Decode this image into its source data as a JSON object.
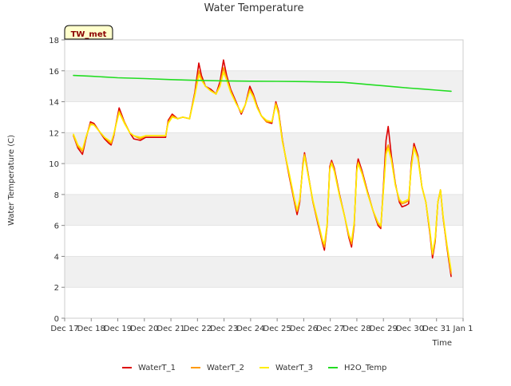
{
  "chart_data": {
    "type": "line",
    "title": "Water Temperature",
    "xlabel": "Time",
    "ylabel": "Water Temperature (C)",
    "badge": "TW_met",
    "xlim": [
      0,
      15
    ],
    "ylim": [
      0,
      18
    ],
    "x_ticks": [
      0,
      1,
      2,
      3,
      4,
      5,
      6,
      7,
      8,
      9,
      10,
      11,
      12,
      13,
      14,
      15
    ],
    "x_tick_labels": [
      "Dec 17",
      "Dec 18",
      "Dec 19",
      "Dec 20",
      "Dec 21",
      "Dec 22",
      "Dec 23",
      "Dec 24",
      "Dec 25",
      "Dec 26",
      "Dec 27",
      "Dec 28",
      "Dec 29",
      "Dec 30",
      "Dec 31",
      "Jan 1"
    ],
    "y_ticks": [
      0,
      2,
      4,
      6,
      8,
      10,
      12,
      14,
      16,
      18
    ],
    "y_tick_labels": [
      "0",
      "2",
      "4",
      "6",
      "8",
      "10",
      "12",
      "14",
      "16",
      "18"
    ],
    "grid": "horizontal bands",
    "legend_position": "bottom",
    "colors": {
      "WaterT_1": "#dd0000",
      "WaterT_2": "#ff9900",
      "WaterT_3": "#ffee00",
      "H2O_Temp": "#22dd22",
      "band": "#f0f0f0",
      "badge_bg": "#ffffcc",
      "badge_border": "#000000"
    },
    "series": [
      {
        "name": "WaterT_1",
        "points": [
          [
            0.33,
            11.8
          ],
          [
            0.5,
            11.0
          ],
          [
            0.67,
            10.6
          ],
          [
            0.8,
            11.6
          ],
          [
            0.97,
            12.7
          ],
          [
            1.1,
            12.6
          ],
          [
            1.3,
            12.1
          ],
          [
            1.5,
            11.6
          ],
          [
            1.67,
            11.3
          ],
          [
            1.75,
            11.2
          ],
          [
            1.85,
            11.8
          ],
          [
            2.05,
            13.6
          ],
          [
            2.25,
            12.7
          ],
          [
            2.45,
            12.0
          ],
          [
            2.6,
            11.6
          ],
          [
            2.85,
            11.5
          ],
          [
            3.05,
            11.7
          ],
          [
            3.25,
            11.7
          ],
          [
            3.6,
            11.7
          ],
          [
            3.8,
            11.7
          ],
          [
            3.9,
            12.8
          ],
          [
            4.05,
            13.2
          ],
          [
            4.25,
            12.9
          ],
          [
            4.45,
            13.0
          ],
          [
            4.7,
            12.9
          ],
          [
            4.9,
            14.6
          ],
          [
            5.05,
            16.5
          ],
          [
            5.15,
            15.7
          ],
          [
            5.3,
            15.0
          ],
          [
            5.5,
            14.8
          ],
          [
            5.7,
            14.5
          ],
          [
            5.85,
            15.3
          ],
          [
            5.98,
            16.7
          ],
          [
            6.1,
            15.7
          ],
          [
            6.25,
            14.8
          ],
          [
            6.45,
            14.0
          ],
          [
            6.65,
            13.2
          ],
          [
            6.8,
            13.8
          ],
          [
            6.97,
            15.0
          ],
          [
            7.1,
            14.5
          ],
          [
            7.25,
            13.7
          ],
          [
            7.4,
            13.1
          ],
          [
            7.6,
            12.7
          ],
          [
            7.8,
            12.6
          ],
          [
            7.95,
            14.0
          ],
          [
            8.05,
            13.4
          ],
          [
            8.2,
            11.5
          ],
          [
            8.45,
            9.2
          ],
          [
            8.65,
            7.5
          ],
          [
            8.75,
            6.7
          ],
          [
            8.85,
            7.5
          ],
          [
            8.97,
            10.0
          ],
          [
            9.03,
            10.7
          ],
          [
            9.15,
            9.5
          ],
          [
            9.35,
            7.5
          ],
          [
            9.55,
            6.0
          ],
          [
            9.7,
            4.9
          ],
          [
            9.78,
            4.4
          ],
          [
            9.88,
            6.0
          ],
          [
            9.98,
            9.8
          ],
          [
            10.05,
            10.2
          ],
          [
            10.15,
            9.7
          ],
          [
            10.35,
            8.0
          ],
          [
            10.55,
            6.5
          ],
          [
            10.7,
            5.2
          ],
          [
            10.8,
            4.6
          ],
          [
            10.9,
            6.0
          ],
          [
            11.0,
            9.8
          ],
          [
            11.05,
            10.3
          ],
          [
            11.2,
            9.5
          ],
          [
            11.4,
            8.2
          ],
          [
            11.6,
            7.0
          ],
          [
            11.8,
            6.0
          ],
          [
            11.9,
            5.8
          ],
          [
            12.0,
            8.5
          ],
          [
            12.1,
            11.5
          ],
          [
            12.18,
            12.4
          ],
          [
            12.3,
            10.5
          ],
          [
            12.45,
            8.7
          ],
          [
            12.6,
            7.5
          ],
          [
            12.7,
            7.2
          ],
          [
            12.85,
            7.3
          ],
          [
            12.95,
            7.4
          ],
          [
            13.05,
            10.0
          ],
          [
            13.15,
            11.3
          ],
          [
            13.3,
            10.5
          ],
          [
            13.45,
            8.5
          ],
          [
            13.6,
            7.5
          ],
          [
            13.75,
            5.5
          ],
          [
            13.85,
            3.9
          ],
          [
            13.95,
            5.0
          ],
          [
            14.05,
            7.5
          ],
          [
            14.15,
            8.3
          ],
          [
            14.25,
            6.5
          ],
          [
            14.4,
            4.5
          ],
          [
            14.55,
            2.7
          ]
        ]
      },
      {
        "name": "WaterT_2",
        "points": [
          [
            0.33,
            11.8
          ],
          [
            0.5,
            11.1
          ],
          [
            0.67,
            10.8
          ],
          [
            0.8,
            11.7
          ],
          [
            0.97,
            12.6
          ],
          [
            1.1,
            12.5
          ],
          [
            1.3,
            12.1
          ],
          [
            1.5,
            11.7
          ],
          [
            1.67,
            11.4
          ],
          [
            1.75,
            11.3
          ],
          [
            1.85,
            11.9
          ],
          [
            2.05,
            13.4
          ],
          [
            2.25,
            12.7
          ],
          [
            2.45,
            12.0
          ],
          [
            2.6,
            11.8
          ],
          [
            2.85,
            11.6
          ],
          [
            3.05,
            11.8
          ],
          [
            3.25,
            11.8
          ],
          [
            3.6,
            11.8
          ],
          [
            3.8,
            11.8
          ],
          [
            3.9,
            12.7
          ],
          [
            4.05,
            13.1
          ],
          [
            4.25,
            12.9
          ],
          [
            4.45,
            13.0
          ],
          [
            4.7,
            12.9
          ],
          [
            4.9,
            14.5
          ],
          [
            5.05,
            16.0
          ],
          [
            5.15,
            15.5
          ],
          [
            5.3,
            15.0
          ],
          [
            5.5,
            14.7
          ],
          [
            5.7,
            14.5
          ],
          [
            5.85,
            15.1
          ],
          [
            5.98,
            16.2
          ],
          [
            6.1,
            15.5
          ],
          [
            6.25,
            14.7
          ],
          [
            6.45,
            13.9
          ],
          [
            6.65,
            13.3
          ],
          [
            6.8,
            13.8
          ],
          [
            6.97,
            14.8
          ],
          [
            7.1,
            14.4
          ],
          [
            7.25,
            13.6
          ],
          [
            7.4,
            13.1
          ],
          [
            7.6,
            12.7
          ],
          [
            7.8,
            12.7
          ],
          [
            7.95,
            13.9
          ],
          [
            8.05,
            13.3
          ],
          [
            8.2,
            11.4
          ],
          [
            8.45,
            9.3
          ],
          [
            8.65,
            7.6
          ],
          [
            8.75,
            6.9
          ],
          [
            8.85,
            7.6
          ],
          [
            8.97,
            9.9
          ],
          [
            9.03,
            10.6
          ],
          [
            9.15,
            9.4
          ],
          [
            9.35,
            7.5
          ],
          [
            9.55,
            6.1
          ],
          [
            9.7,
            5.0
          ],
          [
            9.78,
            4.6
          ],
          [
            9.88,
            6.0
          ],
          [
            9.98,
            9.7
          ],
          [
            10.05,
            10.1
          ],
          [
            10.15,
            9.6
          ],
          [
            10.35,
            7.9
          ],
          [
            10.55,
            6.5
          ],
          [
            10.7,
            5.3
          ],
          [
            10.8,
            4.8
          ],
          [
            10.9,
            6.1
          ],
          [
            11.0,
            9.6
          ],
          [
            11.05,
            10.1
          ],
          [
            11.2,
            9.4
          ],
          [
            11.4,
            8.1
          ],
          [
            11.6,
            7.0
          ],
          [
            11.8,
            6.1
          ],
          [
            11.9,
            5.9
          ],
          [
            12.0,
            8.3
          ],
          [
            12.1,
            10.8
          ],
          [
            12.18,
            11.2
          ],
          [
            12.3,
            10.3
          ],
          [
            12.45,
            8.6
          ],
          [
            12.6,
            7.6
          ],
          [
            12.7,
            7.4
          ],
          [
            12.85,
            7.5
          ],
          [
            12.95,
            7.6
          ],
          [
            13.05,
            9.8
          ],
          [
            13.15,
            11.1
          ],
          [
            13.3,
            10.4
          ],
          [
            13.45,
            8.5
          ],
          [
            13.6,
            7.5
          ],
          [
            13.75,
            5.6
          ],
          [
            13.85,
            4.1
          ],
          [
            13.95,
            5.1
          ],
          [
            14.05,
            7.5
          ],
          [
            14.15,
            8.3
          ],
          [
            14.25,
            6.5
          ],
          [
            14.4,
            4.6
          ],
          [
            14.55,
            2.9
          ]
        ]
      },
      {
        "name": "WaterT_3",
        "points": [
          [
            0.33,
            11.9
          ],
          [
            0.5,
            11.2
          ],
          [
            0.67,
            10.9
          ],
          [
            0.8,
            11.7
          ],
          [
            0.97,
            12.5
          ],
          [
            1.1,
            12.5
          ],
          [
            1.3,
            12.1
          ],
          [
            1.5,
            11.7
          ],
          [
            1.67,
            11.5
          ],
          [
            1.75,
            11.4
          ],
          [
            1.85,
            11.9
          ],
          [
            2.05,
            13.3
          ],
          [
            2.25,
            12.6
          ],
          [
            2.45,
            12.0
          ],
          [
            2.6,
            11.8
          ],
          [
            2.85,
            11.7
          ],
          [
            3.05,
            11.8
          ],
          [
            3.25,
            11.8
          ],
          [
            3.6,
            11.8
          ],
          [
            3.8,
            11.8
          ],
          [
            3.9,
            12.6
          ],
          [
            4.05,
            13.0
          ],
          [
            4.25,
            12.9
          ],
          [
            4.45,
            13.0
          ],
          [
            4.7,
            12.9
          ],
          [
            4.9,
            14.4
          ],
          [
            5.05,
            15.7
          ],
          [
            5.15,
            15.4
          ],
          [
            5.3,
            15.0
          ],
          [
            5.5,
            14.7
          ],
          [
            5.7,
            14.5
          ],
          [
            5.85,
            15.0
          ],
          [
            5.98,
            15.9
          ],
          [
            6.1,
            15.4
          ],
          [
            6.25,
            14.6
          ],
          [
            6.45,
            13.9
          ],
          [
            6.65,
            13.3
          ],
          [
            6.8,
            13.8
          ],
          [
            6.97,
            14.7
          ],
          [
            7.1,
            14.3
          ],
          [
            7.25,
            13.6
          ],
          [
            7.4,
            13.1
          ],
          [
            7.6,
            12.8
          ],
          [
            7.8,
            12.7
          ],
          [
            7.95,
            13.8
          ],
          [
            8.05,
            13.2
          ],
          [
            8.2,
            11.4
          ],
          [
            8.45,
            9.4
          ],
          [
            8.65,
            7.7
          ],
          [
            8.75,
            7.0
          ],
          [
            8.85,
            7.7
          ],
          [
            8.97,
            9.8
          ],
          [
            9.03,
            10.5
          ],
          [
            9.15,
            9.4
          ],
          [
            9.35,
            7.6
          ],
          [
            9.55,
            6.2
          ],
          [
            9.7,
            5.1
          ],
          [
            9.78,
            4.8
          ],
          [
            9.88,
            6.1
          ],
          [
            9.98,
            9.6
          ],
          [
            10.05,
            10.0
          ],
          [
            10.15,
            9.5
          ],
          [
            10.35,
            7.9
          ],
          [
            10.55,
            6.5
          ],
          [
            10.7,
            5.4
          ],
          [
            10.8,
            5.0
          ],
          [
            10.9,
            6.2
          ],
          [
            11.0,
            9.5
          ],
          [
            11.05,
            10.0
          ],
          [
            11.2,
            9.3
          ],
          [
            11.4,
            8.1
          ],
          [
            11.6,
            7.0
          ],
          [
            11.8,
            6.2
          ],
          [
            11.9,
            6.0
          ],
          [
            12.0,
            8.2
          ],
          [
            12.1,
            10.6
          ],
          [
            12.18,
            11.0
          ],
          [
            12.3,
            10.2
          ],
          [
            12.45,
            8.6
          ],
          [
            12.6,
            7.7
          ],
          [
            12.7,
            7.5
          ],
          [
            12.85,
            7.6
          ],
          [
            12.95,
            7.7
          ],
          [
            13.05,
            9.7
          ],
          [
            13.15,
            11.0
          ],
          [
            13.3,
            10.3
          ],
          [
            13.45,
            8.5
          ],
          [
            13.6,
            7.5
          ],
          [
            13.75,
            5.7
          ],
          [
            13.85,
            4.2
          ],
          [
            13.95,
            5.2
          ],
          [
            14.05,
            7.5
          ],
          [
            14.15,
            8.3
          ],
          [
            14.25,
            6.6
          ],
          [
            14.4,
            4.7
          ],
          [
            14.55,
            3.1
          ]
        ]
      },
      {
        "name": "H2O_Temp",
        "points": [
          [
            0.33,
            15.7
          ],
          [
            1.0,
            15.65
          ],
          [
            2.0,
            15.55
          ],
          [
            3.0,
            15.5
          ],
          [
            4.0,
            15.43
          ],
          [
            5.0,
            15.38
          ],
          [
            6.0,
            15.35
          ],
          [
            7.0,
            15.33
          ],
          [
            8.0,
            15.32
          ],
          [
            9.0,
            15.3
          ],
          [
            10.0,
            15.27
          ],
          [
            10.5,
            15.25
          ],
          [
            11.0,
            15.18
          ],
          [
            11.5,
            15.1
          ],
          [
            12.0,
            15.03
          ],
          [
            12.5,
            14.95
          ],
          [
            13.0,
            14.88
          ],
          [
            13.5,
            14.82
          ],
          [
            14.0,
            14.75
          ],
          [
            14.55,
            14.68
          ]
        ]
      }
    ]
  }
}
